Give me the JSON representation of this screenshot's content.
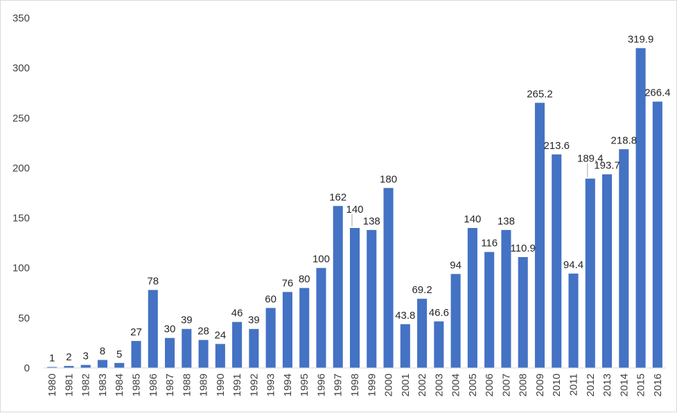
{
  "chart_data": {
    "type": "bar",
    "title": "",
    "xlabel": "",
    "ylabel": "",
    "ylim": [
      0,
      350
    ],
    "yticks": [
      0,
      50,
      100,
      150,
      200,
      250,
      300,
      350
    ],
    "grid": false,
    "legend": "none",
    "bar_color": "#4472c4",
    "categories": [
      "1980",
      "1981",
      "1982",
      "1983",
      "1984",
      "1985",
      "1986",
      "1987",
      "1988",
      "1989",
      "1990",
      "1991",
      "1992",
      "1993",
      "1994",
      "1995",
      "1996",
      "1997",
      "1998",
      "1999",
      "2000",
      "2001",
      "2002",
      "2003",
      "2004",
      "2005",
      "2006",
      "2007",
      "2008",
      "2009",
      "2010",
      "2011",
      "2012",
      "2013",
      "2014",
      "2015",
      "2016"
    ],
    "values": [
      1,
      2,
      3,
      8,
      5,
      27,
      78,
      30,
      39,
      28,
      24,
      46,
      39,
      60,
      76,
      80,
      100,
      162,
      140,
      138,
      180,
      43.8,
      69.2,
      46.6,
      94,
      140,
      116,
      138,
      110.9,
      265.2,
      213.6,
      94.4,
      189.4,
      193.7,
      218.8,
      319.9,
      266.4
    ],
    "data_labels": [
      "1",
      "2",
      "3",
      "8",
      "5",
      "27",
      "78",
      "30",
      "39",
      "28",
      "24",
      "46",
      "39",
      "60",
      "76",
      "80",
      "100",
      "162",
      "140",
      "138",
      "180",
      "43.8",
      "69.2",
      "46.6",
      "94",
      "140",
      "116",
      "138",
      "110.9",
      "265.2",
      "213.6",
      "94.4",
      "189.4",
      "193.7",
      "218.8",
      "319.9",
      "266.4"
    ]
  }
}
